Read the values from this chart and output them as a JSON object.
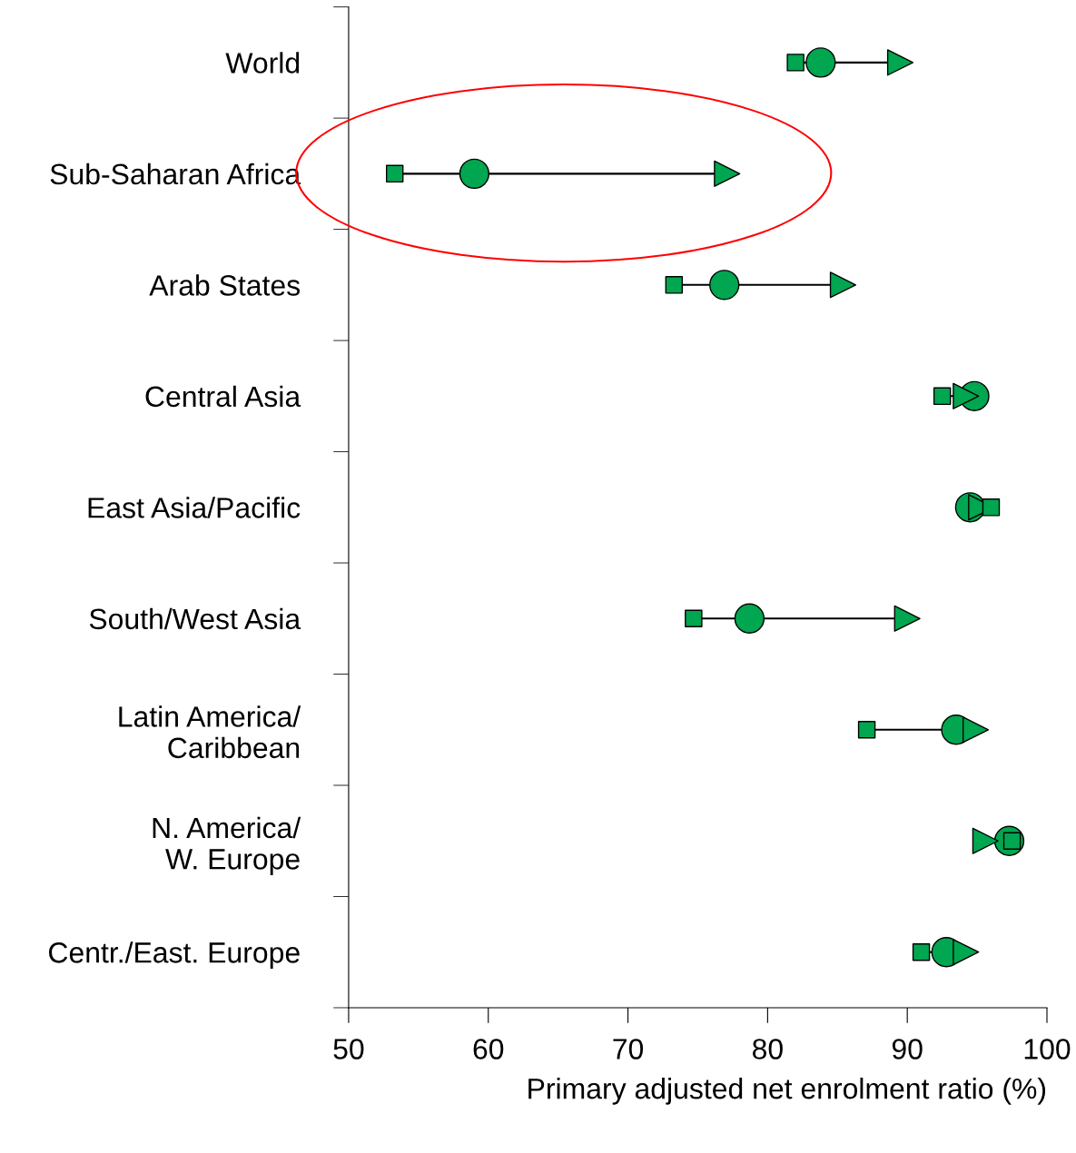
{
  "chart_data": {
    "type": "scatter",
    "orientation": "horizontal",
    "xlabel": "Primary adjusted net enrolment ratio (%)",
    "categories": [
      "World",
      "Sub-Saharan Africa",
      "Arab States",
      "Central Asia",
      "East Asia/Pacific",
      "South/West Asia",
      "Latin America/\nCaribbean",
      "N. America/\nW. Europe",
      "Centr./East. Europe"
    ],
    "xlim": [
      50,
      100
    ],
    "xticks": [
      50,
      60,
      70,
      80,
      90,
      100
    ],
    "grid": false,
    "legend": false,
    "series": [
      {
        "color": "#00a650",
        "marker": "square",
        "values": [
          82.0,
          53.3,
          73.3,
          92.5,
          96.0,
          74.7,
          87.1,
          97.5,
          91.0
        ]
      },
      {
        "color": "#00a650",
        "marker": "circle",
        "values": [
          83.8,
          59.0,
          76.9,
          94.8,
          94.5,
          78.7,
          93.5,
          97.3,
          92.8
        ]
      },
      {
        "color": "#00a650",
        "marker": "triangle",
        "values": [
          89.5,
          77.1,
          85.4,
          94.2,
          95.3,
          90.0,
          94.9,
          95.6,
          94.2
        ]
      }
    ]
  }
}
